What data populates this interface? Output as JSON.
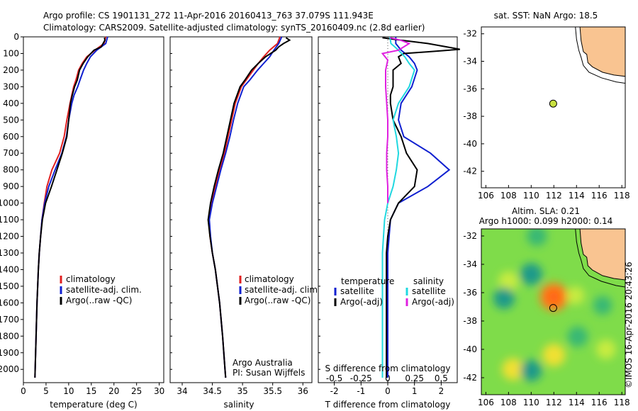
{
  "header": {
    "line1": "Argo profile: CS 1901131_272 11-Apr-2016 20160413_763 37.079S 111.943E",
    "line2": "Climatology: CARS2009. Satellite-adjusted climatology: synTS_20160409.nc (2.8d earlier)"
  },
  "footer": {
    "institute": "Argo Australia",
    "pi": "PI: Susan Wijffels",
    "stamp": "©IMOS 16-Apr-2016 20:43:26"
  },
  "colors": {
    "climatology": "#e02020",
    "satellite": "#1020d0",
    "argo": "#000000",
    "sal_satellite": "#20d8e0",
    "sal_argo": "#e020e0",
    "land": "#f9c491",
    "argo_marker": "#c8e040"
  },
  "chart_data": [
    {
      "type": "line",
      "id": "temperature",
      "xlabel": "temperature (deg C)",
      "xlim": [
        0,
        31
      ],
      "xticks": [
        0,
        5,
        10,
        15,
        20,
        25,
        30
      ],
      "ylim": [
        2080,
        0
      ],
      "yticks": [
        0,
        100,
        200,
        300,
        400,
        500,
        600,
        700,
        800,
        900,
        1000,
        1100,
        1200,
        1300,
        1400,
        1500,
        1600,
        1700,
        1800,
        1900,
        2000
      ],
      "legend": [
        "climatology",
        "satellite-adj. clim.",
        "Argo(..raw -QC)"
      ],
      "series": [
        {
          "name": "climatology",
          "color": "#e02020",
          "depth": [
            0,
            40,
            80,
            120,
            160,
            200,
            260,
            300,
            350,
            400,
            500,
            600,
            700,
            800,
            900,
            1000,
            1100,
            1200,
            1300,
            1400,
            1600,
            1800,
            2000,
            2050
          ],
          "values": [
            18.2,
            17.8,
            15.8,
            14.0,
            13.0,
            12.2,
            11.6,
            11.1,
            10.7,
            10.3,
            9.6,
            9.0,
            8.0,
            6.3,
            5.2,
            4.6,
            4.1,
            3.8,
            3.5,
            3.3,
            3.0,
            2.8,
            2.6,
            2.55
          ]
        },
        {
          "name": "satellite-adj. clim.",
          "color": "#1020d0",
          "depth": [
            0,
            40,
            80,
            120,
            160,
            200,
            260,
            300,
            350,
            400,
            500,
            600,
            700,
            800,
            900,
            1000,
            1100,
            1200,
            1300,
            1400,
            1600,
            1800,
            2000,
            2050
          ],
          "values": [
            18.6,
            18.2,
            16.2,
            14.8,
            14.0,
            13.3,
            12.5,
            12.0,
            11.2,
            10.7,
            10.0,
            9.5,
            8.5,
            7.0,
            5.6,
            4.7,
            4.1,
            3.8,
            3.5,
            3.3,
            3.0,
            2.8,
            2.6,
            2.55
          ]
        },
        {
          "name": "Argo(..raw -QC)",
          "color": "#000000",
          "depth": [
            5,
            20,
            40,
            60,
            80,
            120,
            160,
            200,
            260,
            300,
            350,
            400,
            500,
            600,
            700,
            800,
            900,
            1000,
            1100,
            1200,
            1300,
            1400,
            1600,
            1800,
            2000,
            2050
          ],
          "values": [
            17.9,
            18.0,
            17.6,
            17.2,
            15.6,
            14.2,
            13.2,
            12.4,
            11.9,
            11.3,
            10.8,
            10.4,
            10.0,
            9.6,
            8.6,
            7.4,
            6.2,
            4.9,
            4.2,
            3.8,
            3.5,
            3.3,
            3.0,
            2.8,
            2.6,
            2.55
          ]
        }
      ]
    },
    {
      "type": "line",
      "id": "salinity",
      "xlabel": "salinity",
      "xlim": [
        33.8,
        36.15
      ],
      "xticks": [
        34,
        34.5,
        35,
        35.5,
        36
      ],
      "ylim": [
        2080,
        0
      ],
      "legend": [
        "climatology",
        "satellite-adj. clim.",
        "Argo(..raw -QC)"
      ],
      "series": [
        {
          "name": "climatology",
          "color": "#e02020",
          "depth": [
            0,
            40,
            80,
            120,
            160,
            200,
            260,
            300,
            400,
            500,
            600,
            700,
            800,
            900,
            1000,
            1100,
            1200,
            1300,
            1400,
            1600,
            1800,
            2000,
            2050
          ],
          "values": [
            35.62,
            35.58,
            35.45,
            35.35,
            35.26,
            35.18,
            35.06,
            34.98,
            34.88,
            34.82,
            34.76,
            34.7,
            34.62,
            34.55,
            34.49,
            34.44,
            34.46,
            34.5,
            34.55,
            34.62,
            34.67,
            34.71,
            34.72
          ]
        },
        {
          "name": "satellite-adj. clim.",
          "color": "#1020d0",
          "depth": [
            0,
            40,
            80,
            120,
            160,
            200,
            260,
            300,
            400,
            500,
            600,
            700,
            800,
            900,
            1000,
            1100,
            1200,
            1300,
            1400,
            1600,
            1800,
            2000,
            2050
          ],
          "values": [
            35.65,
            35.6,
            35.52,
            35.45,
            35.35,
            35.25,
            35.12,
            35.02,
            34.92,
            34.85,
            34.79,
            34.72,
            34.64,
            34.57,
            34.5,
            34.45,
            34.47,
            34.5,
            34.55,
            34.62,
            34.67,
            34.71,
            34.72
          ]
        },
        {
          "name": "Argo(..raw -QC)",
          "color": "#000000",
          "depth": [
            5,
            20,
            40,
            60,
            80,
            120,
            160,
            200,
            260,
            300,
            400,
            500,
            600,
            700,
            800,
            900,
            1000,
            1100,
            1200,
            1300,
            1400,
            1600,
            1800,
            2000,
            2050
          ],
          "values": [
            35.72,
            35.78,
            35.68,
            35.6,
            35.55,
            35.38,
            35.26,
            35.15,
            35.04,
            34.96,
            34.86,
            34.8,
            34.74,
            34.68,
            34.6,
            34.53,
            34.47,
            34.43,
            34.46,
            34.5,
            34.55,
            34.62,
            34.67,
            34.71,
            34.72
          ]
        }
      ]
    },
    {
      "type": "line",
      "id": "difference",
      "xlabel": "T difference from climatology",
      "xlabel_top": "S difference from climatology",
      "xlim": [
        -2.6,
        2.6
      ],
      "xticks": [
        -2,
        -1,
        0,
        1,
        2
      ],
      "sticks": [
        "-0.5",
        "-0.25",
        "0",
        "0.25",
        "0.5"
      ],
      "ylim": [
        2080,
        0
      ],
      "legend_temperature": {
        "title": "temperature",
        "items": [
          "satellite",
          "Argo(-adj)"
        ]
      },
      "legend_salinity": {
        "title": "salinity",
        "items": [
          "satellite",
          "Argo(-adj)"
        ]
      },
      "series": [
        {
          "name": "T satellite",
          "color": "#1020d0",
          "depth": [
            0,
            40,
            80,
            120,
            160,
            200,
            300,
            400,
            500,
            600,
            700,
            800,
            900,
            1000,
            1100,
            1200,
            1300,
            1400,
            1600,
            1800,
            2000,
            2050
          ],
          "values": [
            0.3,
            0.3,
            0.5,
            0.8,
            1.0,
            1.1,
            0.9,
            0.5,
            0.4,
            0.6,
            1.6,
            2.3,
            1.5,
            0.4,
            0.1,
            0.05,
            0.0,
            0.0,
            0.0,
            0.0,
            0.0,
            0.0
          ]
        },
        {
          "name": "T Argo(-adj)",
          "color": "#000000",
          "depth": [
            5,
            20,
            40,
            60,
            75,
            90,
            100,
            120,
            160,
            200,
            260,
            300,
            350,
            400,
            500,
            600,
            700,
            800,
            900,
            1000,
            1100,
            1200,
            1300,
            1400,
            1600,
            1800,
            2000,
            2050
          ],
          "values": [
            -0.2,
            0.5,
            1.5,
            2.2,
            2.7,
            1.5,
            0.6,
            0.4,
            0.5,
            0.2,
            0.2,
            0.2,
            0.1,
            0.1,
            0.2,
            0.5,
            0.7,
            1.1,
            1.0,
            0.4,
            0.1,
            0.0,
            -0.05,
            -0.05,
            -0.05,
            -0.05,
            -0.05,
            -0.05
          ]
        },
        {
          "name": "S satellite",
          "color": "#20d8e0",
          "depth": [
            0,
            40,
            80,
            120,
            160,
            200,
            300,
            400,
            500,
            600,
            700,
            800,
            900,
            1000,
            1100,
            1200,
            1300,
            1400,
            1600,
            1800,
            2000,
            2050
          ],
          "values": [
            0.02,
            0.03,
            0.1,
            0.16,
            0.2,
            0.25,
            0.2,
            0.1,
            0.05,
            0.08,
            0.1,
            0.08,
            0.05,
            0.0,
            -0.03,
            -0.04,
            -0.05,
            -0.05,
            -0.05,
            -0.05,
            -0.05,
            -0.05
          ]
        },
        {
          "name": "S Argo(-adj)",
          "color": "#e020e0",
          "depth": [
            5,
            20,
            40,
            60,
            80,
            100,
            140,
            200,
            300,
            400,
            500,
            600,
            700,
            800,
            900,
            1000
          ],
          "values": [
            0.02,
            0.12,
            0.2,
            0.15,
            0.1,
            -0.05,
            0.0,
            -0.02,
            -0.02,
            -0.01,
            0.0,
            0.0,
            -0.01,
            -0.01,
            0.0,
            0.0
          ]
        }
      ]
    },
    {
      "type": "scatter",
      "id": "sst-map",
      "title": "sat. SST: NaN Argo: 18.5",
      "xlim": [
        105.6,
        118.3
      ],
      "ylim": [
        -43.2,
        -31.5
      ],
      "xticks": [
        106,
        108,
        110,
        112,
        114,
        116,
        118
      ],
      "yticks": [
        -32,
        -34,
        -36,
        -38,
        -40,
        -42
      ],
      "argo_position": {
        "lon": 111.943,
        "lat": -37.079
      }
    },
    {
      "type": "heatmap",
      "id": "sla-map",
      "title": "Altim. SLA: 0.21",
      "subtitle": "Argo h1000: 0.099 h2000: 0.14",
      "xlim": [
        105.6,
        118.3
      ],
      "ylim": [
        -43.2,
        -31.5
      ],
      "xticks": [
        106,
        108,
        110,
        112,
        114,
        116,
        118
      ],
      "yticks": [
        -32,
        -34,
        -36,
        -38,
        -40,
        -42
      ],
      "argo_position": {
        "lon": 111.943,
        "lat": -37.079
      },
      "eddies": [
        {
          "lon": 112.0,
          "lat": -36.3,
          "value": 0.35
        },
        {
          "lon": 112.0,
          "lat": -40.4,
          "value": 0.22
        },
        {
          "lon": 108.4,
          "lat": -41.4,
          "value": 0.2
        },
        {
          "lon": 108.0,
          "lat": -35.2,
          "value": 0.15
        },
        {
          "lon": 116.6,
          "lat": -40.0,
          "value": 0.14
        },
        {
          "lon": 110.0,
          "lat": -34.7,
          "value": -0.2
        },
        {
          "lon": 110.5,
          "lat": -32.0,
          "value": -0.15
        },
        {
          "lon": 107.6,
          "lat": -36.4,
          "value": -0.18
        },
        {
          "lon": 110.0,
          "lat": -41.5,
          "value": -0.18
        },
        {
          "lon": 114.1,
          "lat": -39.1,
          "value": -0.16
        },
        {
          "lon": 116.3,
          "lat": -36.9,
          "value": -0.12
        },
        {
          "lon": 113.9,
          "lat": -36.2,
          "value": 0.1
        }
      ]
    }
  ]
}
